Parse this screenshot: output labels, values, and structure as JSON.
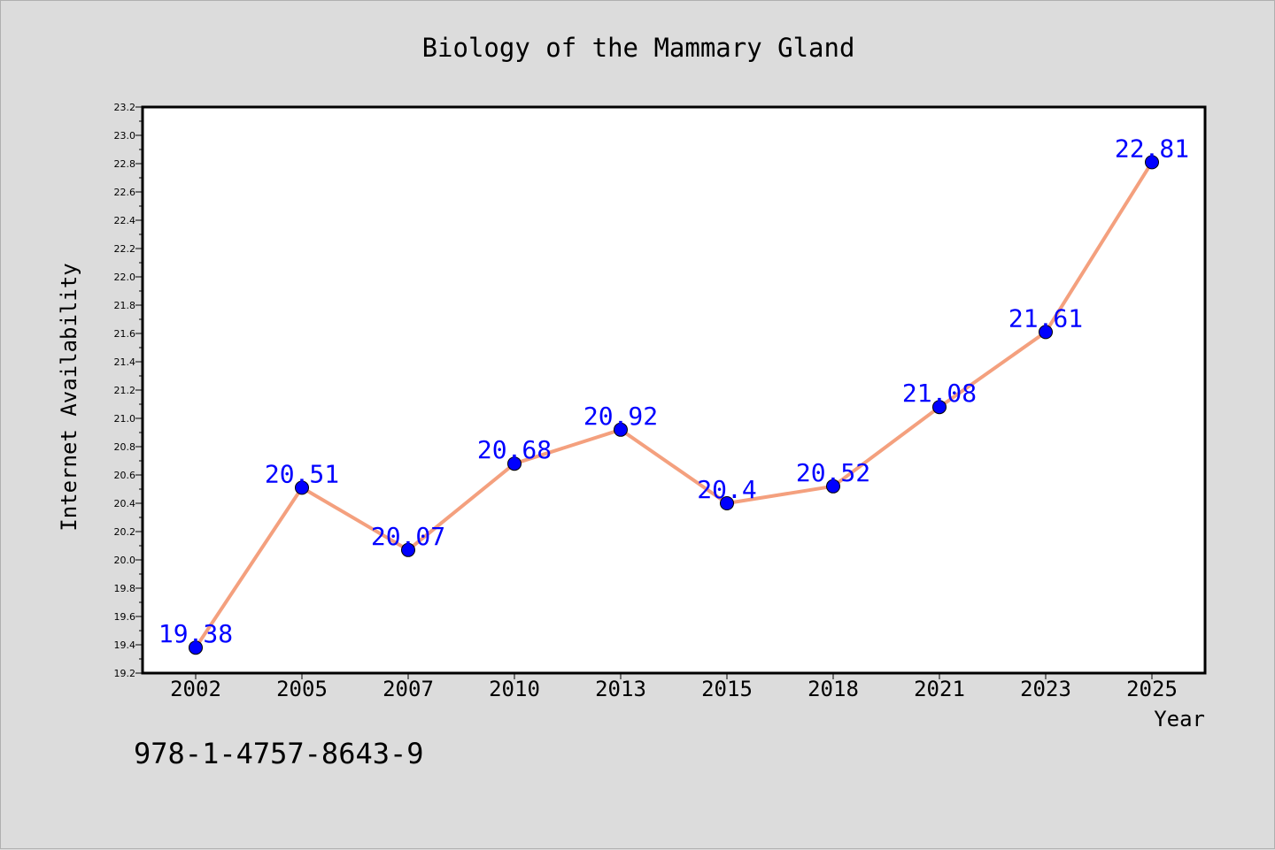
{
  "chart_data": {
    "type": "line",
    "title": "Biology of the Mammary Gland",
    "xlabel": "Year",
    "ylabel": "Internet Availability",
    "categories": [
      "2002",
      "2005",
      "2007",
      "2010",
      "2013",
      "2015",
      "2018",
      "2021",
      "2023",
      "2025"
    ],
    "series": [
      {
        "values": [
          19.38,
          20.51,
          20.07,
          20.68,
          20.92,
          20.4,
          20.52,
          21.08,
          21.61,
          22.81
        ],
        "data_labels": [
          "19.38",
          "20.51",
          "20.07",
          "20.68",
          "20.92",
          "20.4",
          "20.52",
          "21.08",
          "21.61",
          "22.81"
        ],
        "line_color": "#f4a07e",
        "marker_color": "#0000ff"
      }
    ],
    "ylim": [
      19.2,
      23.2
    ],
    "yticks": [
      "19.2",
      "19.4",
      "19.6",
      "19.8",
      "20.0",
      "20.2",
      "20.4",
      "20.6",
      "20.8",
      "21.0",
      "21.2",
      "21.4",
      "21.6",
      "21.8",
      "22.0",
      "22.2",
      "22.4",
      "22.6",
      "22.8",
      "23.0",
      "23.2"
    ],
    "grid": false,
    "label_color": "#0000ff"
  },
  "footer": {
    "isbn": "978-1-4757-8643-9"
  },
  "colors": {
    "background": "#dcdcdc",
    "plot_area": "#ffffff"
  }
}
